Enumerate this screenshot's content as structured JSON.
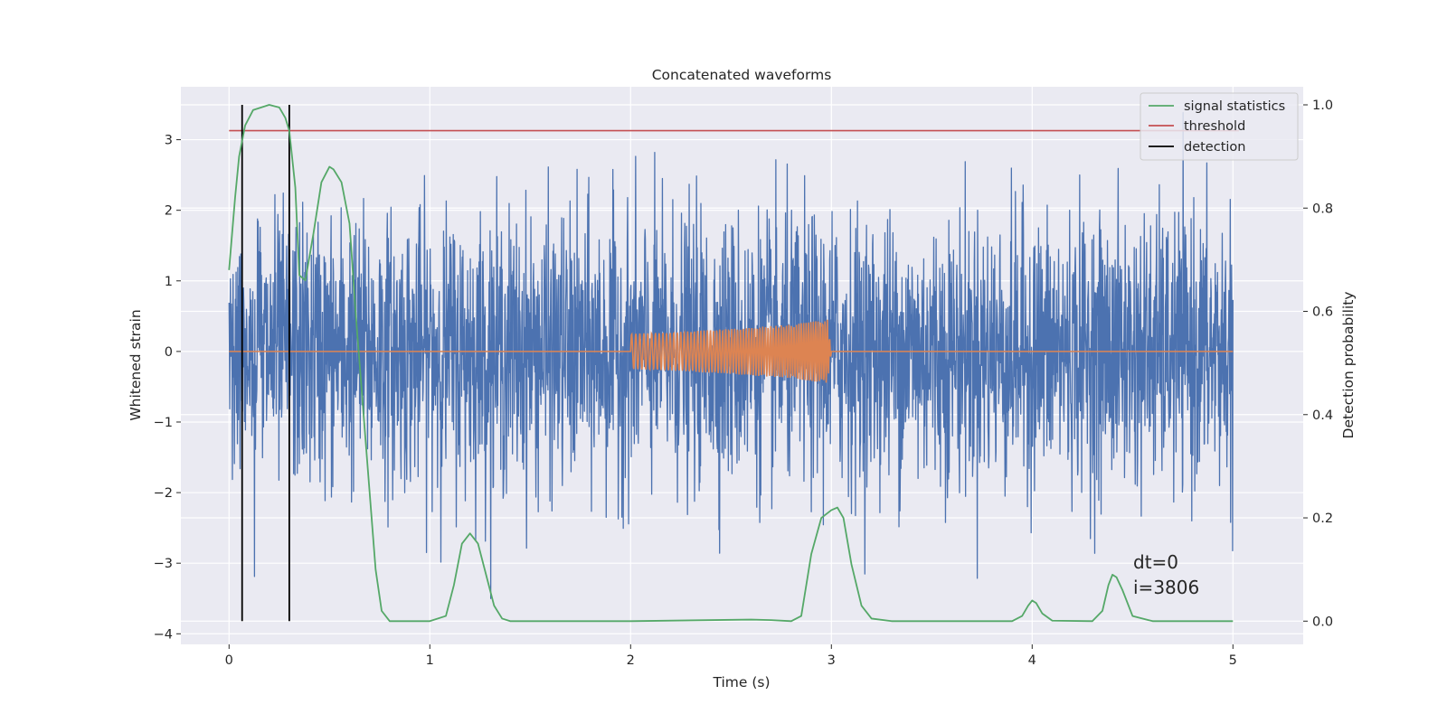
{
  "chart_data": {
    "type": "line",
    "title": "Concatenated waveforms",
    "xlabel": "Time (s)",
    "ylabel": "Whitened strain",
    "ylabel_right": "Detection probability",
    "xlim": [
      -0.24,
      5.35
    ],
    "ylim": [
      -4.15,
      3.75
    ],
    "ylim_right": [
      -0.045,
      1.035
    ],
    "x_ticks": [
      "0",
      "1",
      "2",
      "3",
      "4",
      "5"
    ],
    "y_ticks": [
      "−4",
      "−3",
      "−2",
      "−1",
      "0",
      "1",
      "2",
      "3"
    ],
    "y_ticks_right": [
      "0.0",
      "0.2",
      "0.4",
      "0.6",
      "0.8",
      "1.0"
    ],
    "grid": true,
    "legend_position": "top-right",
    "legend": [
      "signal statistics",
      "threshold",
      "detection"
    ],
    "annotations": [
      "dt=0",
      "i=3806"
    ],
    "colors": {
      "background": "#eaeaf2",
      "strain": "#4c72b0",
      "injection": "#dd8452",
      "signal_statistics": "#55a868",
      "threshold": "#c44e52",
      "detection": "#000000"
    },
    "series": [
      {
        "name": "",
        "role": "whitened-strain-noise",
        "axis": "left",
        "x_range": [
          0,
          5
        ],
        "approx_range": [
          -3.5,
          3.4
        ]
      },
      {
        "name": "",
        "role": "injected-chirp",
        "axis": "left",
        "x": [
          0,
          2,
          2.2,
          2.5,
          2.8,
          2.98,
          3.0,
          5
        ],
        "amplitude": [
          0,
          0.25,
          0.27,
          0.32,
          0.38,
          0.45,
          0,
          0
        ]
      },
      {
        "name": "signal statistics",
        "axis": "right",
        "x": [
          0,
          0.03,
          0.05,
          0.08,
          0.12,
          0.2,
          0.25,
          0.28,
          0.3,
          0.33,
          0.35,
          0.38,
          0.42,
          0.46,
          0.5,
          0.52,
          0.56,
          0.6,
          0.63,
          0.66,
          0.7,
          0.73,
          0.76,
          0.8,
          1.0,
          1.08,
          1.12,
          1.16,
          1.2,
          1.24,
          1.28,
          1.32,
          1.36,
          1.4,
          2.0,
          2.6,
          2.7,
          2.8,
          2.85,
          2.9,
          2.95,
          3.0,
          3.03,
          3.06,
          3.1,
          3.15,
          3.2,
          3.3,
          3.9,
          3.95,
          3.98,
          4.0,
          4.02,
          4.05,
          4.1,
          4.3,
          4.35,
          4.38,
          4.4,
          4.42,
          4.45,
          4.5,
          4.6,
          5.0
        ],
        "values": [
          0.68,
          0.82,
          0.9,
          0.96,
          0.99,
          1.0,
          0.995,
          0.975,
          0.95,
          0.84,
          0.67,
          0.66,
          0.75,
          0.85,
          0.88,
          0.875,
          0.85,
          0.77,
          0.6,
          0.45,
          0.25,
          0.1,
          0.02,
          0.0,
          0.0,
          0.01,
          0.07,
          0.15,
          0.17,
          0.15,
          0.09,
          0.03,
          0.005,
          0.0,
          0.0,
          0.003,
          0.002,
          0.0,
          0.01,
          0.13,
          0.2,
          0.215,
          0.22,
          0.2,
          0.11,
          0.03,
          0.005,
          0.0,
          0.0,
          0.01,
          0.03,
          0.04,
          0.035,
          0.015,
          0.001,
          0.0,
          0.02,
          0.07,
          0.09,
          0.085,
          0.06,
          0.01,
          0.0,
          0.0
        ]
      },
      {
        "name": "threshold",
        "axis": "right",
        "x": [
          0,
          5.03
        ],
        "values": [
          0.95,
          0.95
        ]
      },
      {
        "name": "detection",
        "axis": "right",
        "x": [
          0.065,
          0.065,
          0.3,
          0.3
        ],
        "values": [
          0.0,
          1.0,
          0.0,
          1.0
        ]
      }
    ]
  }
}
